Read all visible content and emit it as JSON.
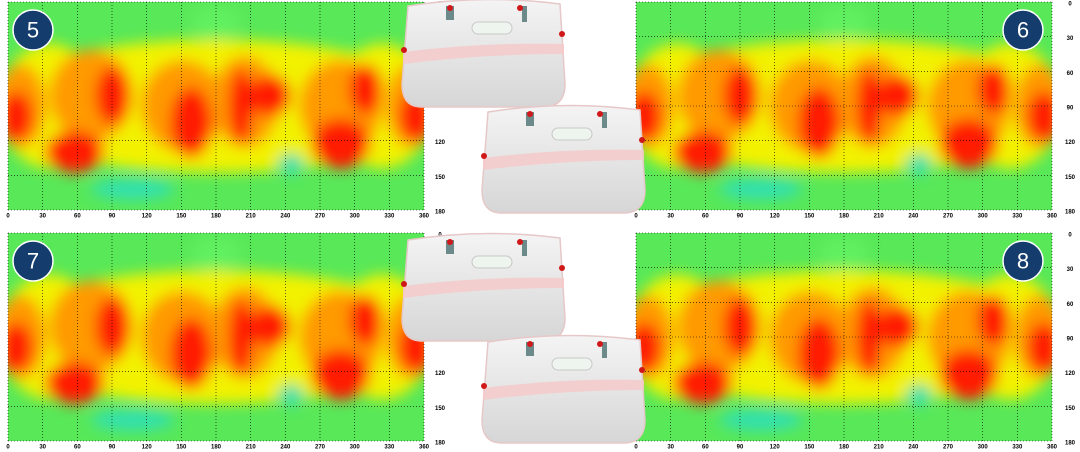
{
  "panels": [
    {
      "badge": "5",
      "xticks": [
        0,
        30,
        60,
        90,
        120,
        150,
        180,
        210,
        240,
        270,
        300,
        330,
        360
      ],
      "yticks": [
        0,
        120,
        150,
        180
      ]
    },
    {
      "badge": "6",
      "xticks": [
        0,
        30,
        60,
        90,
        120,
        150,
        180,
        210,
        240,
        270,
        300,
        330,
        360
      ],
      "yticks": [
        0,
        30,
        60,
        90,
        120,
        150,
        180
      ]
    },
    {
      "badge": "7",
      "xticks": [
        0,
        30,
        60,
        90,
        120,
        150,
        180,
        210,
        240,
        270,
        300,
        330,
        360
      ],
      "yticks": [
        0,
        120,
        150,
        180
      ]
    },
    {
      "badge": "8",
      "xticks": [
        0,
        30,
        60,
        90,
        120,
        150,
        180,
        210,
        240,
        270,
        300,
        330,
        360
      ],
      "yticks": [
        0,
        30,
        60,
        90,
        120,
        150,
        180
      ]
    }
  ]
}
